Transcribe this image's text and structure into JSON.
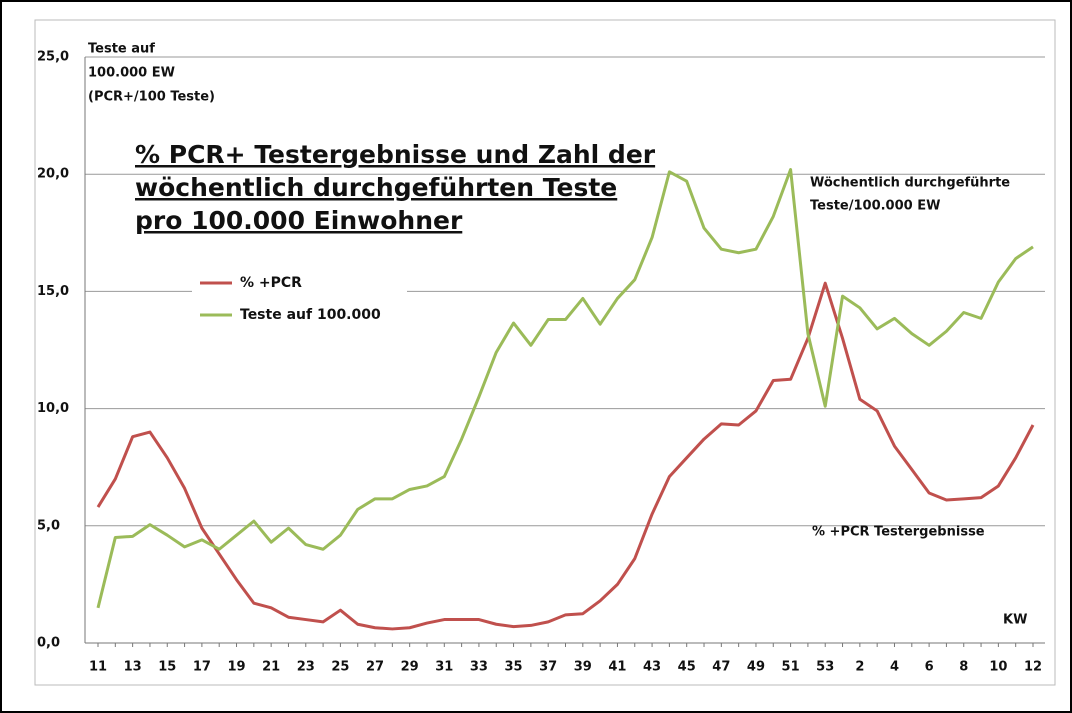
{
  "chart_data": {
    "type": "line",
    "title": [
      "% PCR+ Testergebnisse und Zahl der",
      "wöchentlich durchgeführten Teste",
      "pro 100.000 Einwohner"
    ],
    "ylabel": [
      "Teste auf",
      "100.000 EW",
      "(PCR+/100 Teste)"
    ],
    "xlabel": "KW",
    "annotations": [
      [
        "Wöchentlich durchgeführte",
        "Teste/100.000 EW"
      ],
      [
        "% +PCR Testergebnisse"
      ]
    ],
    "categories": [
      "11",
      null,
      "13",
      null,
      "15",
      null,
      "17",
      null,
      "19",
      null,
      "21",
      null,
      "23",
      null,
      "25",
      null,
      "27",
      null,
      "29",
      null,
      "31",
      null,
      "33",
      null,
      "35",
      null,
      "37",
      null,
      "39",
      null,
      "41",
      null,
      "43",
      null,
      "45",
      null,
      "47",
      null,
      "49",
      null,
      "51",
      null,
      "53",
      null,
      "2",
      null,
      "4",
      null,
      "6",
      null,
      "8",
      null,
      "10",
      null,
      "12"
    ],
    "series": [
      {
        "name": "% +PCR",
        "color": "#c0504d",
        "values": [
          5.8,
          7.0,
          8.8,
          9.0,
          7.9,
          6.6,
          4.9,
          3.8,
          2.7,
          1.7,
          1.5,
          1.1,
          1.0,
          0.9,
          1.4,
          0.8,
          0.65,
          0.6,
          0.65,
          0.85,
          1.0,
          1.0,
          1.0,
          0.8,
          0.7,
          0.75,
          0.9,
          1.2,
          1.25,
          1.8,
          2.5,
          3.6,
          5.5,
          7.1,
          7.9,
          8.7,
          9.35,
          9.3,
          9.9,
          11.2,
          11.25,
          13.0,
          15.35,
          13.0,
          10.4,
          9.9,
          8.4,
          7.4,
          6.4,
          6.1,
          6.15,
          6.2,
          6.7,
          7.9,
          9.3
        ]
      },
      {
        "name": "Teste auf 100.000",
        "color": "#9bbb59",
        "values": [
          1.5,
          4.5,
          4.55,
          5.05,
          4.6,
          4.1,
          4.4,
          4.0,
          4.6,
          5.2,
          4.3,
          4.9,
          4.2,
          4.0,
          4.6,
          5.7,
          6.15,
          6.15,
          6.55,
          6.7,
          7.1,
          8.7,
          10.5,
          12.4,
          13.65,
          12.7,
          13.8,
          13.8,
          14.7,
          13.6,
          14.7,
          15.5,
          17.3,
          20.1,
          19.7,
          17.7,
          16.8,
          16.65,
          16.8,
          18.2,
          20.2,
          13.2,
          10.1,
          14.8,
          14.3,
          13.4,
          13.85,
          13.2,
          12.7,
          13.3,
          14.1,
          13.85,
          15.4,
          16.4,
          16.9
        ]
      }
    ],
    "ylim": [
      0,
      25
    ],
    "yticks": [
      {
        "value": 0,
        "label": "0,0"
      },
      {
        "value": 5,
        "label": "5,0"
      },
      {
        "value": 10,
        "label": "10,0"
      },
      {
        "value": 15,
        "label": "15,0"
      },
      {
        "value": 20,
        "label": "20,0"
      },
      {
        "value": 25,
        "label": "25,0"
      }
    ],
    "grid": true
  }
}
